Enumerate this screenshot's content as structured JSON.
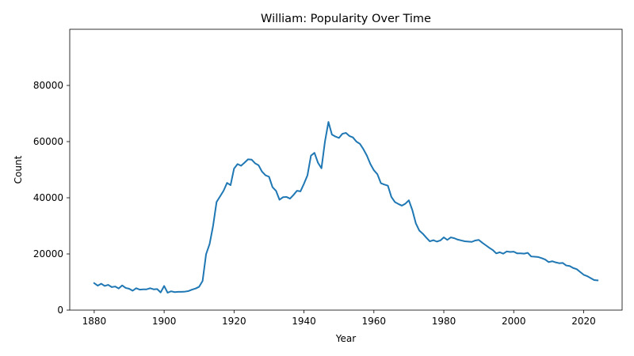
{
  "chart_data": {
    "type": "line",
    "title": "William: Popularity Over Time",
    "xlabel": "Year",
    "ylabel": "Count",
    "xlim": [
      1873,
      2031
    ],
    "ylim": [
      0,
      100000
    ],
    "x_ticks": [
      1880,
      1900,
      1920,
      1940,
      1960,
      1980,
      2000,
      2020
    ],
    "y_ticks": [
      0,
      20000,
      40000,
      60000,
      80000
    ],
    "grid": false,
    "line_color": "#1f77b4",
    "series": [
      {
        "x": [
          1880,
          1881,
          1882,
          1883,
          1884,
          1885,
          1886,
          1887,
          1888,
          1889,
          1890,
          1891,
          1892,
          1893,
          1894,
          1895,
          1896,
          1897,
          1898,
          1899,
          1900,
          1901,
          1902,
          1903,
          1904,
          1905,
          1906,
          1907,
          1908,
          1909,
          1910,
          1911,
          1912,
          1913,
          1914,
          1915,
          1916,
          1917,
          1918,
          1919,
          1920,
          1921,
          1922,
          1923,
          1924,
          1925,
          1926,
          1927,
          1928,
          1929,
          1930,
          1931,
          1932,
          1933,
          1934,
          1935,
          1936,
          1937,
          1938,
          1939,
          1940,
          1941,
          1942,
          1943,
          1944,
          1945,
          1946,
          1947,
          1948,
          1949,
          1950,
          1951,
          1952,
          1953,
          1954,
          1955,
          1956,
          1957,
          1958,
          1959,
          1960,
          1961,
          1962,
          1963,
          1964,
          1965,
          1966,
          1967,
          1968,
          1969,
          1970,
          1971,
          1972,
          1973,
          1974,
          1975,
          1976,
          1977,
          1978,
          1979,
          1980,
          1981,
          1982,
          1983,
          1984,
          1985,
          1986,
          1987,
          1988,
          1989,
          1990,
          1991,
          1992,
          1993,
          1994,
          1995,
          1996,
          1997,
          1998,
          1999,
          2000,
          2001,
          2002,
          2003,
          2004,
          2005,
          2006,
          2007,
          2008,
          2009,
          2010,
          2011,
          2012,
          2013,
          2014,
          2015,
          2016,
          2017,
          2018,
          2019,
          2020,
          2021,
          2022,
          2023,
          2024
        ],
        "values": [
          9600,
          8700,
          9400,
          8600,
          9000,
          8200,
          8400,
          7700,
          8800,
          7900,
          7600,
          6900,
          7800,
          7300,
          7400,
          7400,
          7800,
          7400,
          7500,
          6300,
          8600,
          6200,
          6700,
          6400,
          6500,
          6500,
          6600,
          6800,
          7300,
          7700,
          8300,
          10400,
          19900,
          23500,
          30000,
          38500,
          40500,
          42500,
          45300,
          44500,
          50400,
          52000,
          51400,
          52500,
          53700,
          53600,
          52300,
          51600,
          49300,
          48000,
          47500,
          43800,
          42500,
          39300,
          40200,
          40300,
          39700,
          41000,
          42500,
          42300,
          45000,
          48000,
          55000,
          56000,
          52500,
          50500,
          60000,
          67000,
          62500,
          61800,
          61300,
          62800,
          63100,
          62000,
          61500,
          60000,
          59200,
          57300,
          55000,
          52000,
          49800,
          48400,
          45200,
          44700,
          44300,
          40300,
          38500,
          37800,
          37200,
          37900,
          39100,
          35600,
          30900,
          28300,
          27200,
          25800,
          24500,
          24900,
          24400,
          24800,
          25900,
          25000,
          25900,
          25600,
          25100,
          24800,
          24500,
          24400,
          24300,
          24800,
          25000,
          24000,
          23100,
          22200,
          21400,
          20200,
          20600,
          20100,
          20900,
          20700,
          20800,
          20200,
          20200,
          20100,
          20400,
          19100,
          19000,
          18900,
          18500,
          18000,
          17100,
          17400,
          17000,
          16700,
          16800,
          15900,
          15700,
          15000,
          14600,
          13600,
          12600,
          12100,
          11400,
          10700,
          10600
        ]
      }
    ]
  }
}
